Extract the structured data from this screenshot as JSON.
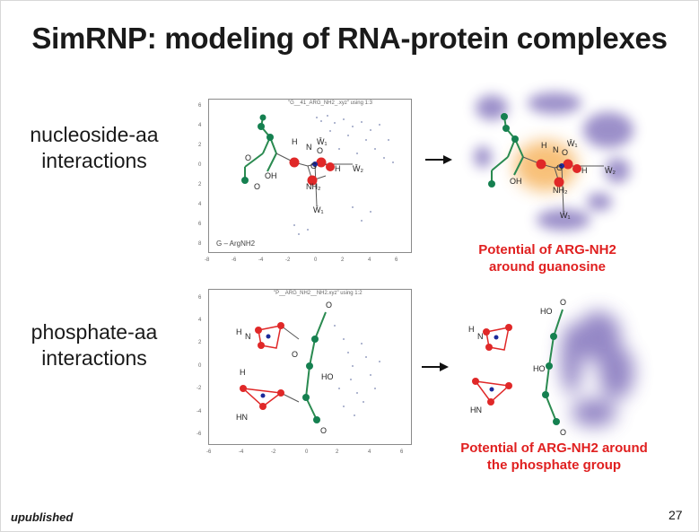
{
  "slide": {
    "title": "SimRNP: modeling of RNA-protein complexes",
    "footer_label": "upublished",
    "page_number": "27"
  },
  "rows": [
    {
      "label_line1": "nucleoside-aa",
      "label_line2": "interactions",
      "plot_caption": "\"G__41_ARG_NH2_.xyz\" using 1:3",
      "plot_legend": "G – ArgNH2",
      "result_caption_line1": "Potential of ARG-NH2",
      "result_caption_line2": "around guanosine"
    },
    {
      "label_line1": "phosphate-aa",
      "label_line2": "interactions",
      "plot_caption": "\"P__ARG_NH2__NH2.xyz\" using 1:2",
      "plot_legend": "",
      "result_caption_line1": "Potential of ARG-NH2 around",
      "result_caption_line2": "the phosphate group"
    }
  ],
  "axes": {
    "plot1_y_ticks": [
      "6",
      "4",
      "2",
      "0",
      "2",
      "4",
      "6",
      "8"
    ],
    "plot1_x_ticks": [
      "-8",
      "-6",
      "-4",
      "-2",
      "0",
      "2",
      "4",
      "6"
    ],
    "plot2_y_ticks": [
      "6",
      "4",
      "2",
      "0",
      "-2",
      "-4",
      "-6"
    ],
    "plot2_x_ticks": [
      "-6",
      "-4",
      "-2",
      "0",
      "2",
      "4",
      "6"
    ]
  },
  "molecule_labels": {
    "g": "G",
    "h": "H",
    "n": "N",
    "o": "O",
    "oh": "OH",
    "nh2": "NH₂",
    "hn": "HN",
    "ho": "HO",
    "w1": "W̄₁",
    "w2": "W̄₂"
  },
  "colors": {
    "accent_red": "#e02020",
    "backbone_green": "#2a8a50",
    "atom_green": "#158050",
    "atom_red": "#e02828",
    "atom_blue": "#1a2a9a",
    "density_purple": "#7a6ab8",
    "density_orange": "#f5a640"
  }
}
